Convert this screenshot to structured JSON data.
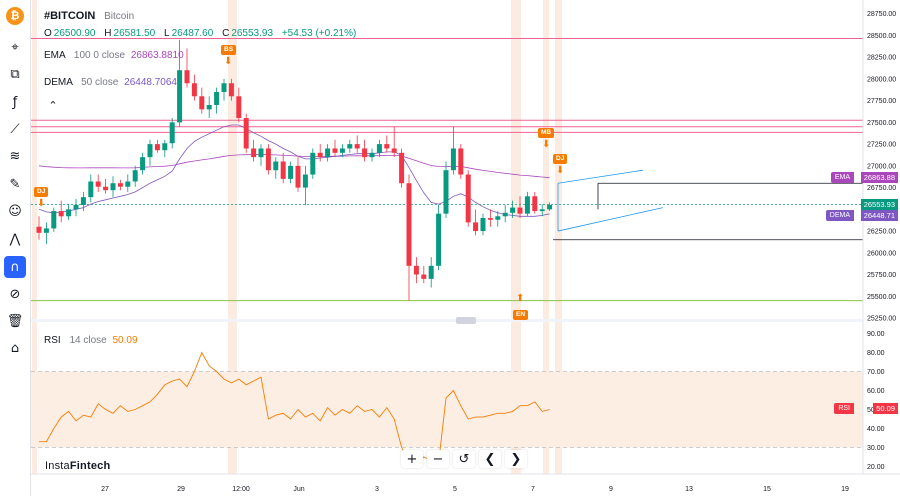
{
  "toolbar": {
    "items": [
      {
        "name": "bitcoin-logo-button",
        "glyph": "₿"
      },
      {
        "name": "crosshair-icon",
        "glyph": "⌖"
      },
      {
        "name": "candle-type-icon",
        "glyph": "⧉"
      },
      {
        "name": "indicators-icon",
        "glyph": "ƒ"
      },
      {
        "name": "trendline-icon",
        "glyph": "⟋"
      },
      {
        "name": "fib-icon",
        "glyph": "≋"
      },
      {
        "name": "brush-icon",
        "glyph": "✎"
      },
      {
        "name": "emoji-icon",
        "glyph": "☺"
      },
      {
        "name": "pattern-icon",
        "glyph": "⋀"
      },
      {
        "name": "magnet-icon",
        "glyph": "∩"
      },
      {
        "name": "hide-drawings-icon",
        "glyph": "⊘"
      },
      {
        "name": "trash-icon",
        "glyph": "🗑"
      },
      {
        "name": "lock-icon",
        "glyph": "⌂"
      }
    ]
  },
  "legend": {
    "symbol": "#BITCOIN",
    "name": "Bitcoin",
    "open_label": "O",
    "open": "26500.90",
    "high_label": "H",
    "high": "26581.50",
    "low_label": "L",
    "low": "26487.60",
    "close_label": "C",
    "close": "26553.93",
    "change": "+54.53 (+0.21%)",
    "ema_label": "EMA",
    "ema_params": "100 0 close",
    "ema_value": "26863.8810",
    "dema_label": "DEMA",
    "dema_params": "50 close",
    "dema_value": "26448.7064",
    "rsi_label": "RSI",
    "rsi_params": "14 close",
    "rsi_value": "50.09",
    "collapse_glyph": "⌃"
  },
  "price_tags": {
    "ema_label": "EMA",
    "ema_value": "26863.88",
    "last_value": "26553.93",
    "dema_label": "DEMA",
    "dema_value": "26448.71",
    "rsi_label": "RSI",
    "rsi_value": "50.09"
  },
  "markers": {
    "bs": "BS",
    "dj1": "DJ",
    "mb": "MB",
    "dj2": "DJ",
    "en": "EN"
  },
  "nav": {
    "zoom_in": "+",
    "zoom_out": "−",
    "reset": "↺",
    "left": "❮",
    "right": "❯"
  },
  "watermark": {
    "prefix": "Insta",
    "suffix": "Fintech"
  },
  "colors": {
    "up": "#089981",
    "down": "#f23645",
    "ema": "#ab47bc",
    "dema": "#7e57c2",
    "rsi": "#f57c00",
    "marker": "#f57c00",
    "channel": "#2196f3",
    "hline": "#f06292"
  },
  "price_axis": [
    "28750.00",
    "28500.00",
    "28250.00",
    "28000.00",
    "27750.00",
    "27500.00",
    "27250.00",
    "27000.00",
    "26750.00",
    "26500.00",
    "26250.00",
    "26000.00",
    "25750.00",
    "25500.00",
    "25250.00"
  ],
  "rsi_axis": [
    "90.00",
    "80.00",
    "70.00",
    "60.00",
    "50.00",
    "40.00",
    "30.00",
    "20.00"
  ],
  "date_axis": [
    "27",
    "29",
    "12:00",
    "Jun",
    "3",
    "5",
    "7",
    "9",
    "13",
    "15",
    "19"
  ],
  "chart_data": {
    "type": "candlestick",
    "y_range": [
      25250,
      28850
    ],
    "last_price": 26553.93,
    "ema_last": 26863.88,
    "dema_last": 26448.71,
    "candles": [
      [
        26300,
        26420,
        26150,
        26230
      ],
      [
        26230,
        26350,
        26100,
        26280
      ],
      [
        26280,
        26520,
        26240,
        26480
      ],
      [
        26480,
        26600,
        26350,
        26420
      ],
      [
        26420,
        26560,
        26380,
        26500
      ],
      [
        26500,
        26620,
        26420,
        26550
      ],
      [
        26550,
        26700,
        26480,
        26640
      ],
      [
        26640,
        26900,
        26580,
        26820
      ],
      [
        26820,
        26900,
        26700,
        26760
      ],
      [
        26760,
        26850,
        26680,
        26720
      ],
      [
        26720,
        26880,
        26640,
        26800
      ],
      [
        26800,
        26840,
        26720,
        26760
      ],
      [
        26760,
        26900,
        26700,
        26820
      ],
      [
        26820,
        27000,
        26760,
        26950
      ],
      [
        26950,
        27150,
        26900,
        27100
      ],
      [
        27100,
        27300,
        27000,
        27250
      ],
      [
        27250,
        27300,
        27150,
        27180
      ],
      [
        27180,
        27300,
        27100,
        27260
      ],
      [
        27260,
        27550,
        27200,
        27500
      ],
      [
        27500,
        28450,
        27450,
        28100
      ],
      [
        28100,
        28350,
        27900,
        27950
      ],
      [
        27950,
        28050,
        27750,
        27800
      ],
      [
        27800,
        27900,
        27600,
        27650
      ],
      [
        27650,
        27800,
        27550,
        27700
      ],
      [
        27700,
        27900,
        27600,
        27850
      ],
      [
        27850,
        28000,
        27750,
        27950
      ],
      [
        27950,
        28000,
        27750,
        27800
      ],
      [
        27800,
        27900,
        27500,
        27550
      ],
      [
        27550,
        27600,
        27150,
        27200
      ],
      [
        27200,
        27300,
        27050,
        27100
      ],
      [
        27100,
        27250,
        27000,
        27200
      ],
      [
        27200,
        27250,
        26900,
        26950
      ],
      [
        26950,
        27100,
        26850,
        27050
      ],
      [
        27050,
        27150,
        26800,
        26850
      ],
      [
        26850,
        27050,
        26800,
        27000
      ],
      [
        27000,
        27100,
        26700,
        26750
      ],
      [
        26750,
        27000,
        26550,
        26900
      ],
      [
        26900,
        27200,
        26850,
        27150
      ],
      [
        27150,
        27250,
        27050,
        27100
      ],
      [
        27100,
        27250,
        27050,
        27200
      ],
      [
        27200,
        27300,
        27100,
        27150
      ],
      [
        27150,
        27250,
        27100,
        27200
      ],
      [
        27200,
        27300,
        27150,
        27250
      ],
      [
        27250,
        27350,
        27150,
        27200
      ],
      [
        27200,
        27300,
        27050,
        27100
      ],
      [
        27100,
        27200,
        27050,
        27150
      ],
      [
        27150,
        27300,
        27100,
        27250
      ],
      [
        27250,
        27350,
        27150,
        27200
      ],
      [
        27200,
        27450,
        27100,
        27150
      ],
      [
        27150,
        27200,
        26750,
        26800
      ],
      [
        26800,
        26900,
        25450,
        25850
      ],
      [
        25850,
        25950,
        25650,
        25750
      ],
      [
        25750,
        25850,
        25650,
        25700
      ],
      [
        25700,
        25950,
        25600,
        25850
      ],
      [
        25850,
        26550,
        25800,
        26450
      ],
      [
        26450,
        27050,
        26400,
        26950
      ],
      [
        26950,
        27450,
        26900,
        27200
      ],
      [
        27200,
        27250,
        26850,
        26900
      ],
      [
        26900,
        26950,
        26300,
        26350
      ],
      [
        26350,
        26500,
        26200,
        26250
      ],
      [
        26250,
        26450,
        26200,
        26400
      ],
      [
        26400,
        26500,
        26300,
        26380
      ],
      [
        26380,
        26480,
        26300,
        26420
      ],
      [
        26420,
        26550,
        26350,
        26460
      ],
      [
        26460,
        26600,
        26400,
        26520
      ],
      [
        26520,
        26650,
        26400,
        26450
      ],
      [
        26450,
        26700,
        26420,
        26650
      ],
      [
        26650,
        26700,
        26450,
        26480
      ],
      [
        26480,
        26560,
        26420,
        26500
      ],
      [
        26500,
        26580,
        26480,
        26550
      ]
    ],
    "ema": [
      27000,
      26990,
      26985,
      26980,
      26978,
      26976,
      26976,
      26978,
      26978,
      26977,
      26977,
      26976,
      26976,
      26978,
      26982,
      26988,
      26992,
      26996,
      27004,
      27024,
      27042,
      27056,
      27068,
      27080,
      27094,
      27110,
      27120,
      27126,
      27128,
      27128,
      27130,
      27128,
      27126,
      27120,
      27118,
      27112,
      27108,
      27108,
      27108,
      27110,
      27110,
      27112,
      27114,
      27116,
      27116,
      27116,
      27118,
      27120,
      27120,
      27114,
      27086,
      27058,
      27030,
      27004,
      26992,
      26990,
      26994,
      26992,
      26978,
      26962,
      26948,
      26936,
      26924,
      26914,
      26904,
      26894,
      26888,
      26880,
      26872,
      26864
    ],
    "dema": [
      26500,
      26470,
      26460,
      26470,
      26480,
      26500,
      26520,
      26560,
      26590,
      26610,
      26630,
      26650,
      26670,
      26700,
      26750,
      26800,
      26840,
      26880,
      26940,
      27080,
      27200,
      27280,
      27330,
      27370,
      27410,
      27450,
      27470,
      27470,
      27430,
      27380,
      27340,
      27290,
      27250,
      27200,
      27160,
      27110,
      27080,
      27080,
      27090,
      27100,
      27110,
      27120,
      27130,
      27140,
      27140,
      27140,
      27150,
      27160,
      27160,
      27120,
      26980,
      26830,
      26690,
      26580,
      26560,
      26590,
      26650,
      26680,
      26640,
      26580,
      26530,
      26490,
      26460,
      26440,
      26430,
      26420,
      26420,
      26420,
      26430,
      26449
    ],
    "rsi": [
      33,
      33,
      40,
      46,
      49,
      44,
      47,
      46,
      53,
      50,
      48,
      52,
      49,
      50,
      52,
      54,
      58,
      63,
      65,
      66,
      62,
      70,
      80,
      73,
      70,
      66,
      64,
      66,
      63,
      65,
      67,
      45,
      47,
      48,
      45,
      50,
      46,
      48,
      44,
      51,
      47,
      50,
      48,
      52,
      49,
      50,
      46,
      51,
      45,
      30,
      22,
      21,
      25,
      23,
      22,
      56,
      60,
      52,
      45,
      46,
      46,
      47,
      48,
      48,
      49,
      52,
      52,
      54,
      49,
      50
    ]
  }
}
